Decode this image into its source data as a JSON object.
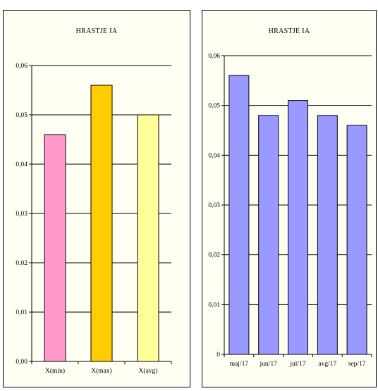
{
  "chart_data": [
    {
      "type": "bar",
      "title": "HRASTJE IA",
      "categories": [
        "X(min)",
        "X(max)",
        "X(avg)"
      ],
      "values": [
        0.046,
        0.056,
        0.05
      ],
      "colors": [
        "#ff99cc",
        "#ffcc00",
        "#ffff99"
      ],
      "ylim": [
        0,
        0.06
      ],
      "yticks": [
        "0,00",
        "0,01",
        "0,02",
        "0,03",
        "0,04",
        "0,05",
        "0,06"
      ],
      "grid": true
    },
    {
      "type": "bar",
      "title": "HRASTJE IA",
      "categories": [
        "maj/17",
        "jun/17",
        "jul/17",
        "avg/17",
        "sep/17"
      ],
      "values": [
        0.056,
        0.048,
        0.051,
        0.048,
        0.046
      ],
      "colors": [
        "#9999ff",
        "#9999ff",
        "#9999ff",
        "#9999ff",
        "#9999ff"
      ],
      "ylim": [
        0,
        0.06
      ],
      "yticks": [
        "0",
        "0,01",
        "0,02",
        "0,03",
        "0,04",
        "0,05",
        "0,06"
      ],
      "grid": true
    }
  ]
}
